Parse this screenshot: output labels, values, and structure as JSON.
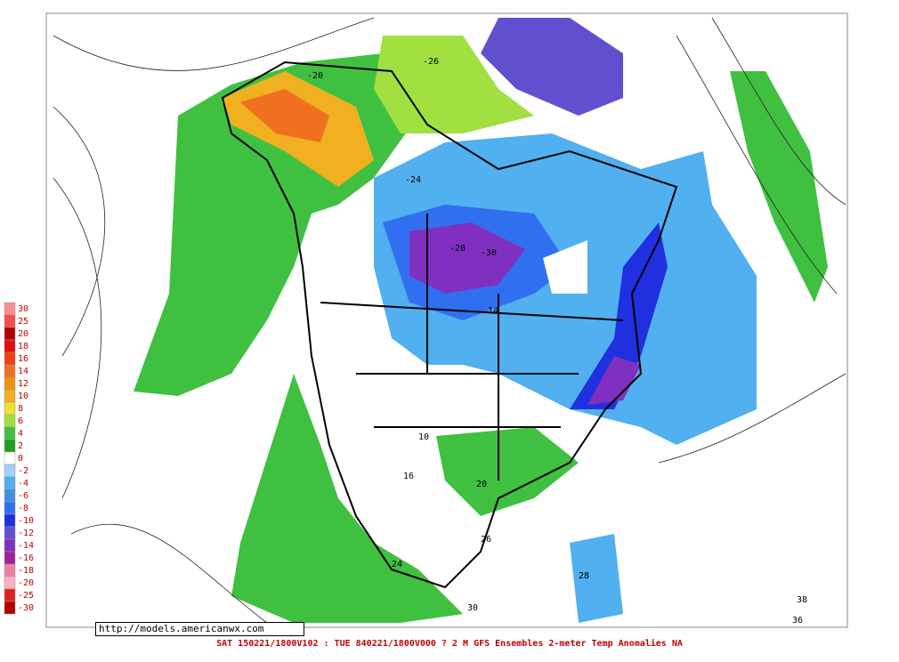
{
  "legend": {
    "entries": [
      {
        "label": 30,
        "color": "#ff8c8c"
      },
      {
        "label": 25,
        "color": "#f05050"
      },
      {
        "label": 20,
        "color": "#b40000"
      },
      {
        "label": 18,
        "color": "#e01010"
      },
      {
        "label": 16,
        "color": "#f04010"
      },
      {
        "label": 14,
        "color": "#f07020"
      },
      {
        "label": 12,
        "color": "#f09010"
      },
      {
        "label": 10,
        "color": "#f0b020"
      },
      {
        "label": 8,
        "color": "#f0e030"
      },
      {
        "label": 6,
        "color": "#a0e040"
      },
      {
        "label": 4,
        "color": "#40c040"
      },
      {
        "label": 2,
        "color": "#20a020"
      },
      {
        "label": 0,
        "color": "#ffffff"
      },
      {
        "label": -2,
        "color": "#a0d0ff"
      },
      {
        "label": -4,
        "color": "#50b0f0"
      },
      {
        "label": -6,
        "color": "#4090e0"
      },
      {
        "label": -8,
        "color": "#3070f0"
      },
      {
        "label": -10,
        "color": "#2030e0"
      },
      {
        "label": -12,
        "color": "#6050d0"
      },
      {
        "label": -14,
        "color": "#8030c0"
      },
      {
        "label": -16,
        "color": "#a020a0"
      },
      {
        "label": -18,
        "color": "#f080a0"
      },
      {
        "label": -20,
        "color": "#ffb0c0"
      },
      {
        "label": -25,
        "color": "#e02020"
      },
      {
        "label": -30,
        "color": "#b00000"
      }
    ]
  },
  "url": "http://models.americanwx.com",
  "footer": "SAT 150221/1800V102 : TUE 840221/1800V000  ? 2 M GFS Ensembles 2-meter Temp Anomalies NA",
  "map_labels": [
    "-28",
    "-30",
    "-24",
    "-26",
    "-20",
    "14",
    "10",
    "16",
    "20",
    "24",
    "26",
    "28",
    "30",
    "36",
    "38"
  ]
}
